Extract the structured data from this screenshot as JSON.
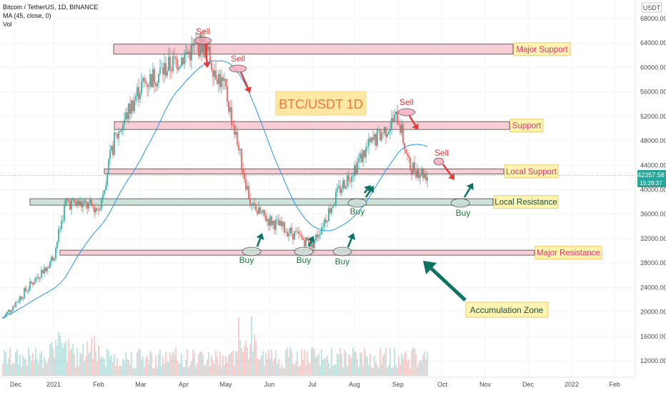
{
  "header": {
    "symbol_line": "Bitcoin / TetherUS, 1D, BINANCE",
    "ma_line": "MA (45, close, 0)",
    "vol_line": "Vol"
  },
  "price_axis": {
    "currency": "USDT",
    "ticks": [
      "68000.00",
      "64000.00",
      "60000.00",
      "56000.00",
      "52000.00",
      "48000.00",
      "44000.00",
      "40000.00",
      "36000.00",
      "32000.00",
      "28000.00",
      "24000.00",
      "20000.00",
      "16000.00",
      "12000.00"
    ],
    "last_price": "42357.58",
    "countdown": "15:28:37",
    "last_price_color": "#26a69a"
  },
  "time_axis": {
    "ticks": [
      "Dec",
      "2021",
      "Feb",
      "Mar",
      "Apr",
      "May",
      "Jun",
      "Jul",
      "Aug",
      "Sep",
      "Oct",
      "Nov",
      "Dec",
      "2022",
      "Feb"
    ]
  },
  "title_box": {
    "text": "BTC/USDT  1D"
  },
  "zones": {
    "major_support": "Major Support",
    "support": "Support",
    "local_support": "Local Support",
    "local_resistance": "Local Resistance",
    "major_resistance": "Major Resistance",
    "accumulation": "Accumulation Zone"
  },
  "signals": {
    "sell": "Sell",
    "buy": "Buy"
  },
  "colors": {
    "up": "#26a69a",
    "down": "#ef5350",
    "ma": "#2196f3",
    "sell": "#e53935",
    "buy": "#1b7f3b",
    "arrow_green": "#0e7462",
    "zone_pink": "#f8c9d2",
    "zone_green": "#c9dfd6",
    "label_bg": "#fff3b0",
    "title_bg": "#ffe8a3",
    "title_fg": "#f4763a"
  },
  "chart_data": {
    "type": "candlestick",
    "symbol": "Bitcoin / TetherUS",
    "interval": "1D",
    "exchange": "BINANCE",
    "moving_average": {
      "period": 45
    },
    "last_price": 42357.58,
    "price_range": [
      10000,
      70000
    ],
    "price_path": [
      [
        "Dec",
        19000
      ],
      [
        "2021",
        29000
      ],
      [
        "Jan",
        38000
      ],
      [
        "Feb",
        37000
      ],
      [
        "Feb",
        48000
      ],
      [
        "Mar",
        57000
      ],
      [
        "Apr",
        64000
      ],
      [
        "May",
        56000
      ],
      [
        "May",
        37000
      ],
      [
        "Jun",
        35000
      ],
      [
        "Jul",
        31000
      ],
      [
        "Jul",
        40000
      ],
      [
        "Aug",
        47000
      ],
      [
        "Sep",
        52000
      ],
      [
        "Sep",
        44000
      ],
      [
        "Sep",
        42357.58
      ]
    ],
    "levels": [
      {
        "label": "Major Support",
        "price": 63000
      },
      {
        "label": "Support",
        "price": 50500
      },
      {
        "label": "Local Support",
        "price": 43000
      },
      {
        "label": "Local Resistance",
        "price": 38000
      },
      {
        "label": "Major Resistance",
        "price": 29700
      }
    ]
  }
}
